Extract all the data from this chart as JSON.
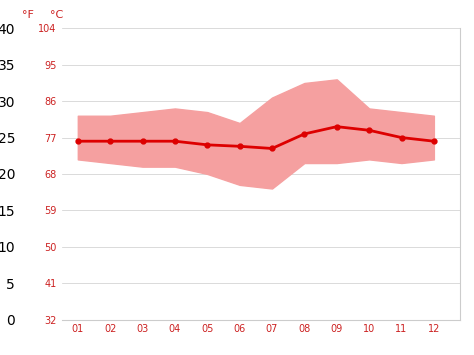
{
  "months": [
    1,
    2,
    3,
    4,
    5,
    6,
    7,
    8,
    9,
    10,
    11,
    12
  ],
  "month_labels": [
    "01",
    "02",
    "03",
    "04",
    "05",
    "06",
    "07",
    "08",
    "09",
    "10",
    "11",
    "12"
  ],
  "mean_temp_c": [
    24.5,
    24.5,
    24.5,
    24.5,
    24.0,
    23.8,
    23.5,
    25.5,
    26.5,
    26.0,
    25.0,
    24.5
  ],
  "max_temp_c": [
    28.0,
    28.0,
    28.5,
    29.0,
    28.5,
    27.0,
    30.5,
    32.5,
    33.0,
    29.0,
    28.5,
    28.0
  ],
  "min_temp_c": [
    22.0,
    21.5,
    21.0,
    21.0,
    20.0,
    18.5,
    18.0,
    21.5,
    21.5,
    22.0,
    21.5,
    22.0
  ],
  "yticks_c": [
    0,
    5,
    10,
    15,
    20,
    25,
    30,
    35,
    40
  ],
  "yticks_f": [
    32,
    41,
    50,
    59,
    68,
    77,
    86,
    95,
    104
  ],
  "ylim_c": [
    0,
    40
  ],
  "xlim": [
    0.5,
    12.8
  ],
  "line_color": "#dd0000",
  "band_color": "#f5a0a0",
  "bg_color": "#ffffff",
  "grid_color": "#cccccc",
  "axis_label_f": "°F",
  "axis_label_c": "°C",
  "tick_color": "#cc2222",
  "marker": "o",
  "marker_size": 3.5,
  "linewidth": 2.0,
  "tick_fontsize": 7,
  "label_fontsize": 8
}
